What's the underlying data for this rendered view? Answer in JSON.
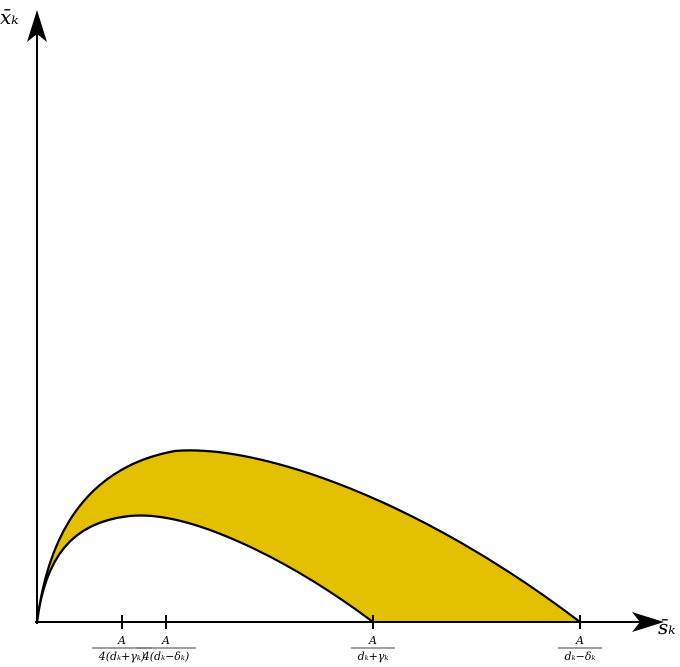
{
  "axes": {
    "y_label": "x̄ₖ",
    "x_label": "s̄ₖ"
  },
  "ticks": [
    {
      "numerator": "A",
      "denominator": "4(dₖ+γₖ)"
    },
    {
      "numerator": "A",
      "denominator": "4(dₖ−δₖ)"
    },
    {
      "numerator": "A",
      "denominator": "dₖ+γₖ"
    },
    {
      "numerator": "A",
      "denominator": "dₖ−δₖ"
    }
  ]
}
